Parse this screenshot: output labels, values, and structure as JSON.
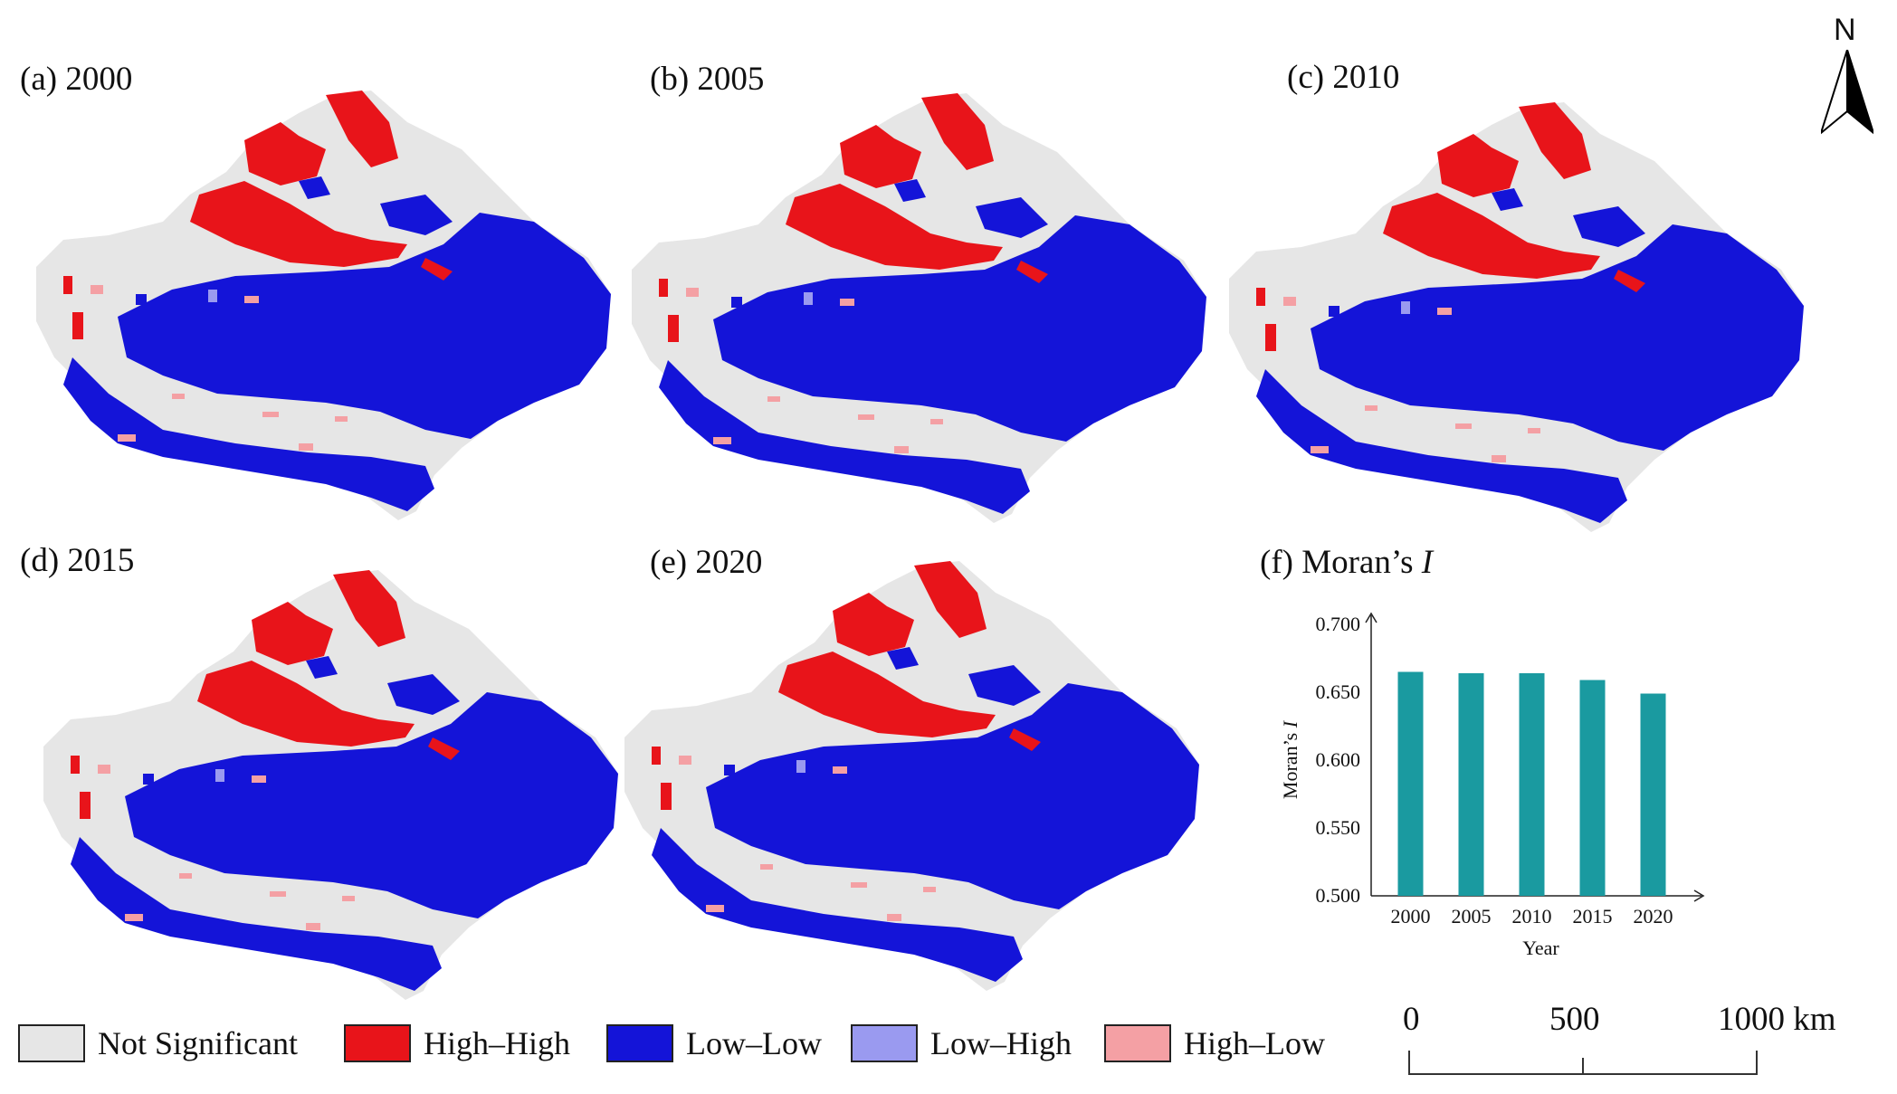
{
  "panels": [
    {
      "id": "a",
      "label": "(a) 2000"
    },
    {
      "id": "b",
      "label": "(b) 2005"
    },
    {
      "id": "c",
      "label": "(c) 2010"
    },
    {
      "id": "d",
      "label": "(d) 2015"
    },
    {
      "id": "e",
      "label": "(e) 2020"
    }
  ],
  "chart_title_prefix": "(f) Moran’s ",
  "chart_title_italic": "I",
  "north": "N",
  "legend": [
    {
      "label": "Not Significant",
      "color": "#e6e6e6"
    },
    {
      "label": "High–High",
      "color": "#e8141a"
    },
    {
      "label": "Low–Low",
      "color": "#1414d8"
    },
    {
      "label": "Low–High",
      "color": "#9a9af0"
    },
    {
      "label": "High–Low",
      "color": "#f4a0a4"
    }
  ],
  "scale_bar": {
    "ticks": [
      "0",
      "500",
      "1000 km"
    ]
  },
  "chart_data": {
    "type": "bar",
    "title": "(f) Moran’s I",
    "categories": [
      "2000",
      "2005",
      "2010",
      "2015",
      "2020"
    ],
    "values": [
      0.665,
      0.664,
      0.664,
      0.659,
      0.649
    ],
    "ylim": [
      0.5,
      0.7
    ],
    "yticks": [
      "0.500",
      "0.550",
      "0.600",
      "0.650",
      "0.700"
    ],
    "xlabel": "Year",
    "ylabel_prefix": "Moran’s ",
    "ylabel_italic": "I",
    "bar_color": "#1a9aa0"
  }
}
